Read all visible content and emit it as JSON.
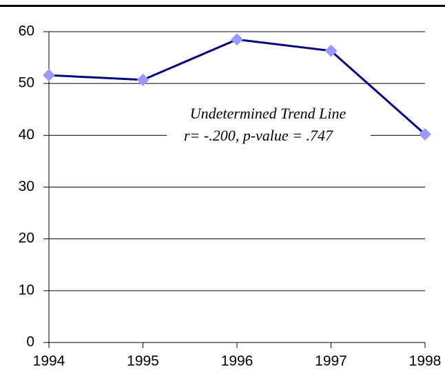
{
  "chart_data": {
    "type": "line",
    "categories": [
      "1994",
      "1995",
      "1996",
      "1997",
      "1998"
    ],
    "values": [
      51.6,
      50.7,
      58.5,
      56.3,
      40.2
    ],
    "color": "#000080",
    "marker_color": "#9999ff",
    "ylim": [
      0,
      60
    ],
    "yticks": [
      0,
      10,
      20,
      30,
      40,
      50,
      60
    ],
    "grid": true,
    "annotation": [
      "Undetermined Trend Line",
      "r= -.200, p-value = .747"
    ]
  }
}
